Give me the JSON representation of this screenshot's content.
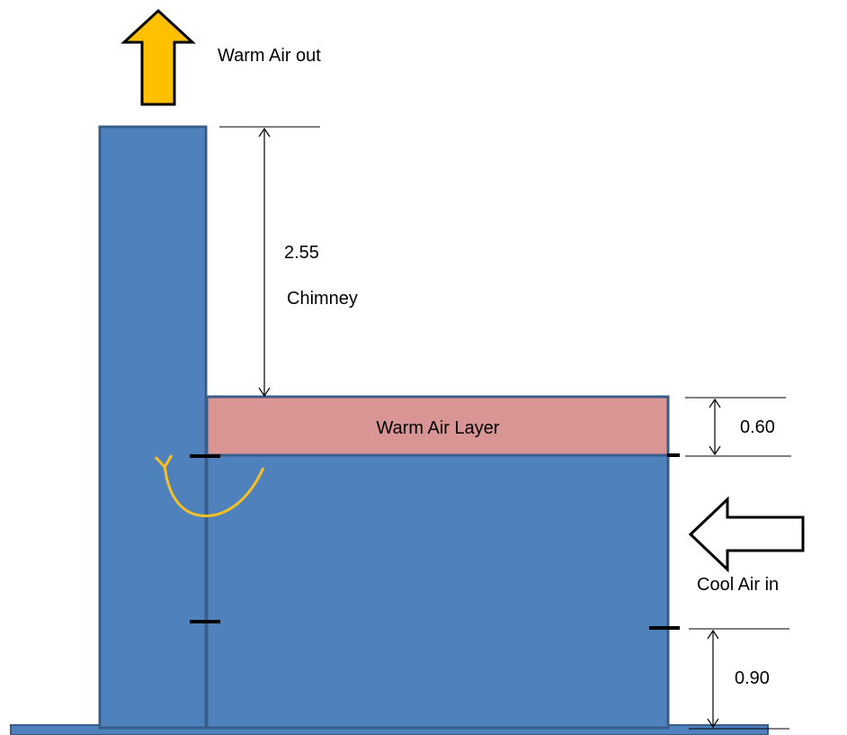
{
  "labels": {
    "warm_air_out": "Warm Air out",
    "chimney_height": "2.55",
    "chimney": "Chimney",
    "warm_air_layer": "Warm Air Layer",
    "warm_layer_depth": "0.60",
    "cool_air_in": "Cool Air in",
    "inlet_height": "0.90"
  },
  "colors": {
    "structure_fill": "#4f81bd",
    "structure_stroke": "#385d8a",
    "warm_layer_fill": "#d99594",
    "warm_arrow_fill": "#ffc000",
    "circulation_arrow": "#f6c122",
    "cool_arrow_fill": "#ffffff"
  },
  "icons": {
    "warm_air_out": "up-arrow-icon",
    "cool_air_in": "left-arrow-icon",
    "circulation": "curved-arrow-icon"
  }
}
